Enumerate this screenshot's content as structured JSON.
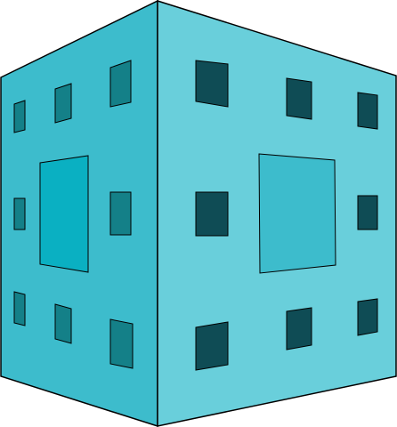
{
  "figure": {
    "subject": "menger-sponge-level-1-cube",
    "colors": {
      "background": "#ffffff",
      "outline": "#000000",
      "left_face": "#3dbccc",
      "right_face": "#69cfdb",
      "left_center_hole": "#0ab0c2",
      "right_center_hole": "#3dbccc",
      "left_small_hole": "#148088",
      "right_small_hole": "#0f4c55"
    },
    "faces": [
      {
        "name": "left-face",
        "label": ""
      },
      {
        "name": "right-face",
        "label": ""
      }
    ]
  }
}
